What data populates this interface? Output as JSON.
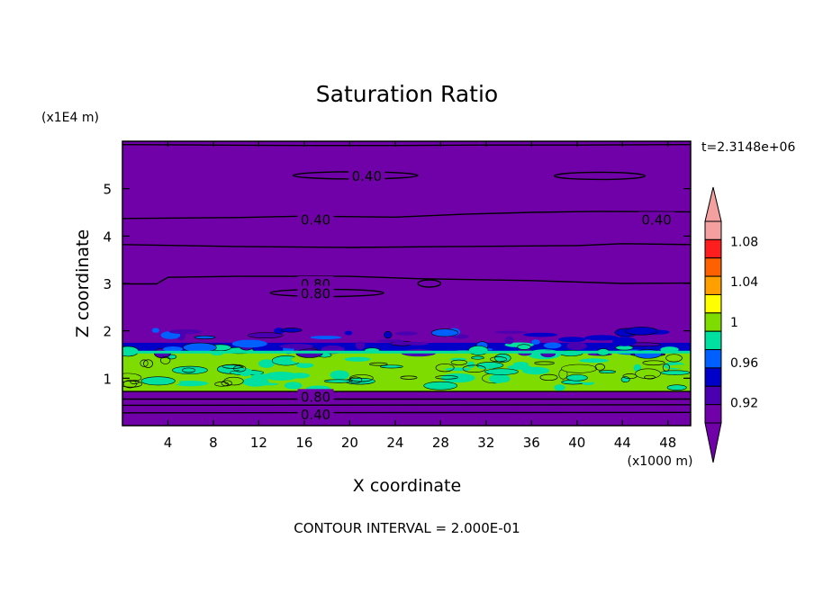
{
  "chart_data": {
    "type": "heatmap",
    "title": "Saturation Ratio",
    "xlabel": "X coordinate",
    "ylabel": "Z coordinate",
    "x_unit": "(x1000 m)",
    "y_unit": "(x1E4 m)",
    "time_label": "t=2.3148e+06",
    "footer": "CONTOUR INTERVAL = 2.000E-01",
    "xlim": [
      0,
      50
    ],
    "ylim": [
      0,
      6
    ],
    "x_ticks": [
      4,
      8,
      12,
      16,
      20,
      24,
      28,
      32,
      36,
      40,
      44,
      48
    ],
    "y_ticks": [
      1,
      2,
      3,
      4,
      5
    ],
    "colorbar": {
      "levels": [
        0.9,
        0.92,
        0.94,
        0.96,
        0.98,
        1.0,
        1.02,
        1.04,
        1.06,
        1.08,
        1.1
      ],
      "tick_labels": [
        "0.92",
        "0.96",
        "1",
        "1.04",
        "1.08"
      ],
      "colors": [
        "#7000a8",
        "#4a00b0",
        "#0000c8",
        "#0060ff",
        "#00e0a0",
        "#7fdc00",
        "#ffff00",
        "#ffa000",
        "#ff6000",
        "#ff1e1e",
        "#f4a0a0"
      ],
      "under_color": "#7000a8",
      "over_color": "#f4a0a0"
    },
    "bands": [
      {
        "z": [
          0.0,
          0.72
        ],
        "level": "below 0.92",
        "color": "#7000a8"
      },
      {
        "z": [
          0.72,
          1.55
        ],
        "level": "0.98-1.00",
        "color": "#7fdc00"
      },
      {
        "z": [
          1.55,
          1.75
        ],
        "level": "0.92-0.96",
        "color": "#0000c8"
      },
      {
        "z": [
          1.75,
          6.0
        ],
        "level": "below 0.92",
        "color": "#7000a8"
      }
    ],
    "contour_labels": [
      {
        "text": "0.40",
        "x": 21.5,
        "z": 5.28
      },
      {
        "text": "0.40",
        "x": 17.0,
        "z": 4.36
      },
      {
        "text": "0.40",
        "x": 47.0,
        "z": 4.36
      },
      {
        "text": "0.80",
        "x": 17.0,
        "z": 3.0
      },
      {
        "text": "0.80",
        "x": 17.0,
        "z": 2.8
      },
      {
        "text": "0.80",
        "x": 17.0,
        "z": 0.62
      },
      {
        "text": "0.40",
        "x": 17.0,
        "z": 0.25
      }
    ],
    "contour_lines": [
      {
        "level": 0.4,
        "points": [
          [
            0,
            5.93
          ],
          [
            8,
            5.92
          ],
          [
            16,
            5.91
          ],
          [
            24,
            5.91
          ],
          [
            32,
            5.92
          ],
          [
            40,
            5.92
          ],
          [
            50,
            5.93
          ]
        ]
      },
      {
        "level": 0.4,
        "points": [
          [
            0,
            4.37
          ],
          [
            10,
            4.39
          ],
          [
            16,
            4.42
          ],
          [
            24,
            4.4
          ],
          [
            30,
            4.46
          ],
          [
            36,
            4.5
          ],
          [
            42,
            4.52
          ],
          [
            50,
            4.51
          ]
        ]
      },
      {
        "level": 0.4,
        "points": [
          [
            0,
            3.82
          ],
          [
            10,
            3.78
          ],
          [
            20,
            3.76
          ],
          [
            30,
            3.78
          ],
          [
            40,
            3.8
          ],
          [
            44,
            3.84
          ],
          [
            50,
            3.82
          ]
        ]
      },
      {
        "level": 0.8,
        "points": [
          [
            0,
            2.99
          ],
          [
            3,
            2.99
          ],
          [
            4,
            3.13
          ],
          [
            10,
            3.15
          ],
          [
            20,
            3.15
          ],
          [
            26,
            3.1
          ],
          [
            36,
            3.06
          ],
          [
            44,
            3.0
          ],
          [
            50,
            3.01
          ]
        ]
      },
      {
        "level": 0.8,
        "points": [
          [
            0,
            0.72
          ],
          [
            50,
            0.72
          ]
        ]
      },
      {
        "level": 0.8,
        "points": [
          [
            0,
            0.56
          ],
          [
            50,
            0.56
          ]
        ]
      },
      {
        "level": 0.4,
        "points": [
          [
            0,
            0.43
          ],
          [
            50,
            0.44
          ]
        ]
      },
      {
        "level": 0.4,
        "points": [
          [
            0,
            0.27
          ],
          [
            50,
            0.28
          ]
        ]
      }
    ]
  }
}
